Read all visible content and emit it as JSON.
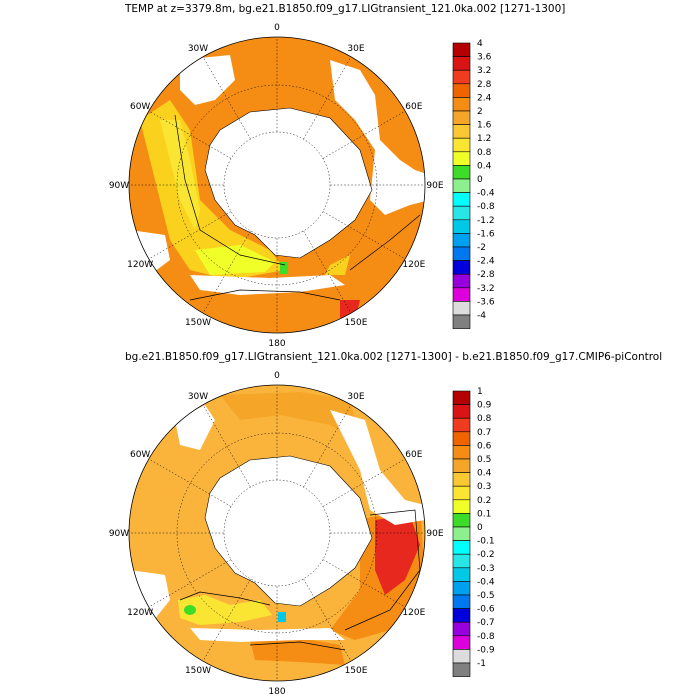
{
  "panels": [
    {
      "title": "TEMP at z=3379.8m, bg.e21.B1850.f09_g17.LIGtransient_121.0ka.002 [1271-1300]",
      "colorbar_labels": [
        "4",
        "3.6",
        "3.2",
        "2.8",
        "2.4",
        "2",
        "1.6",
        "1.2",
        "0.8",
        "0.4",
        "0",
        "-0.4",
        "-0.8",
        "-1.2",
        "-1.6",
        "-2",
        "-2.4",
        "-2.8",
        "-3.2",
        "-3.6",
        "-4"
      ]
    },
    {
      "title": "bg.e21.B1850.f09_g17.LIGtransient_121.0ka.002 [1271-1300] - b.e21.B1850.f09_g17.CMIP6-piControl",
      "colorbar_labels": [
        "1",
        "0.9",
        "0.8",
        "0.7",
        "0.6",
        "0.5",
        "0.4",
        "0.3",
        "0.2",
        "0.1",
        "0",
        "-0.1",
        "-0.2",
        "-0.3",
        "-0.4",
        "-0.5",
        "-0.6",
        "-0.7",
        "-0.8",
        "-0.9",
        "-1"
      ]
    }
  ],
  "longitude_labels": [
    "0",
    "30E",
    "60E",
    "90E",
    "120E",
    "150E",
    "180",
    "150W",
    "120W",
    "90W",
    "60W",
    "30W"
  ],
  "colorbar_colors": [
    "#b40000",
    "#d81414",
    "#f03c1e",
    "#f06400",
    "#f58c14",
    "#f5a528",
    "#fac832",
    "#fae632",
    "#f0ff28",
    "#3cdc28",
    "#8cf08c",
    "#00ffff",
    "#28e6e6",
    "#00c8e6",
    "#00a0f0",
    "#0078f0",
    "#0000dc",
    "#9600dc",
    "#dc00dc",
    "#dcdcdc",
    "#808080"
  ],
  "colors": {
    "orange_dark": "#f58c14",
    "orange_mid": "#f5a528",
    "orange_light": "#fab43c",
    "yellow": "#fae632",
    "yellow_pale": "#fad21e",
    "red": "#e6281e"
  }
}
